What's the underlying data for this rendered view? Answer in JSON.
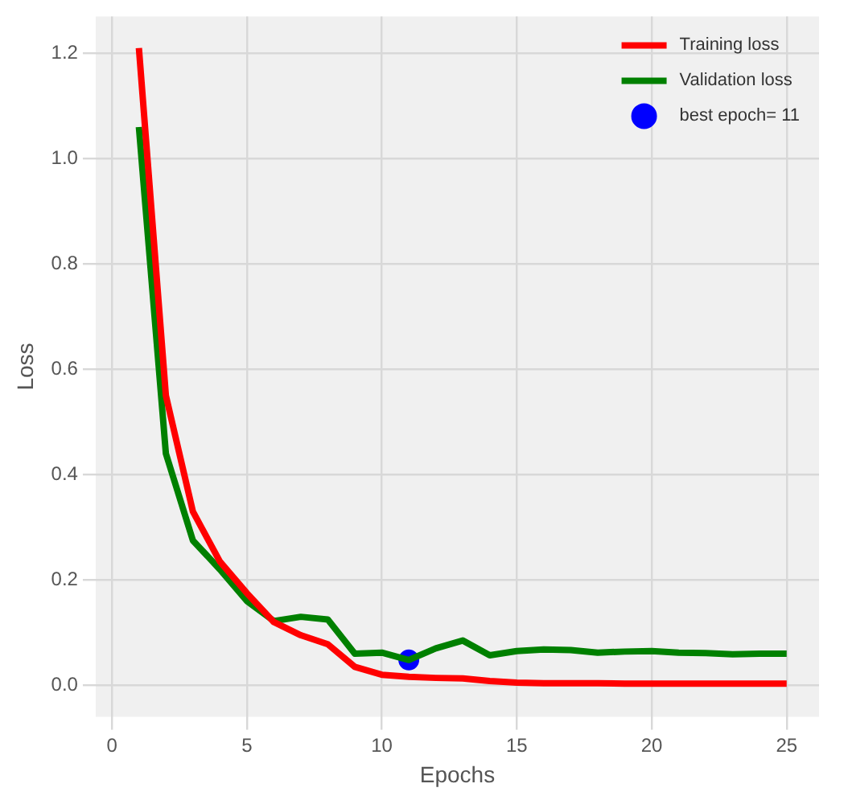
{
  "chart_data": {
    "type": "line",
    "xlabel": "Epochs",
    "ylabel": "Loss",
    "xlim": [
      -0.6,
      26.2
    ],
    "ylim": [
      -0.06,
      1.27
    ],
    "xticks": [
      0,
      5,
      10,
      15,
      20,
      25
    ],
    "yticks": [
      {
        "value": 0,
        "label": "0.0"
      },
      {
        "value": 0.2,
        "label": "0.2"
      },
      {
        "value": 0.4,
        "label": "0.4"
      },
      {
        "value": 0.6,
        "label": "0.6"
      },
      {
        "value": 0.8,
        "label": "0.8"
      },
      {
        "value": 1,
        "label": "1.0"
      },
      {
        "value": 1.2,
        "label": "1.2"
      }
    ],
    "grid": true,
    "legend": "top right",
    "marker": "none",
    "x": [
      1,
      2,
      3,
      4,
      5,
      6,
      7,
      8,
      9,
      10,
      11,
      12,
      13,
      14,
      15,
      16,
      17,
      18,
      19,
      20,
      21,
      22,
      23,
      24,
      25
    ],
    "series": [
      {
        "name": "Training loss",
        "color": "#ff0000",
        "values": [
          1.21,
          0.55,
          0.33,
          0.235,
          0.175,
          0.12,
          0.095,
          0.078,
          0.035,
          0.02,
          0.016,
          0.014,
          0.013,
          0.008,
          0.005,
          0.004,
          0.004,
          0.004,
          0.003,
          0.003,
          0.003,
          0.003,
          0.003,
          0.003,
          0.003
        ]
      },
      {
        "name": "Validation loss",
        "color": "#008000",
        "values": [
          1.06,
          0.44,
          0.275,
          0.22,
          0.16,
          0.122,
          0.13,
          0.125,
          0.06,
          0.062,
          0.048,
          0.07,
          0.085,
          0.057,
          0.065,
          0.068,
          0.067,
          0.062,
          0.064,
          0.065,
          0.062,
          0.061,
          0.059,
          0.06,
          0.06
        ]
      },
      {
        "name": "best epoch= 11",
        "type": "scatter",
        "marker": "circle",
        "color": "#0000ff",
        "x": [
          11
        ],
        "values": [
          0.048
        ]
      }
    ]
  }
}
